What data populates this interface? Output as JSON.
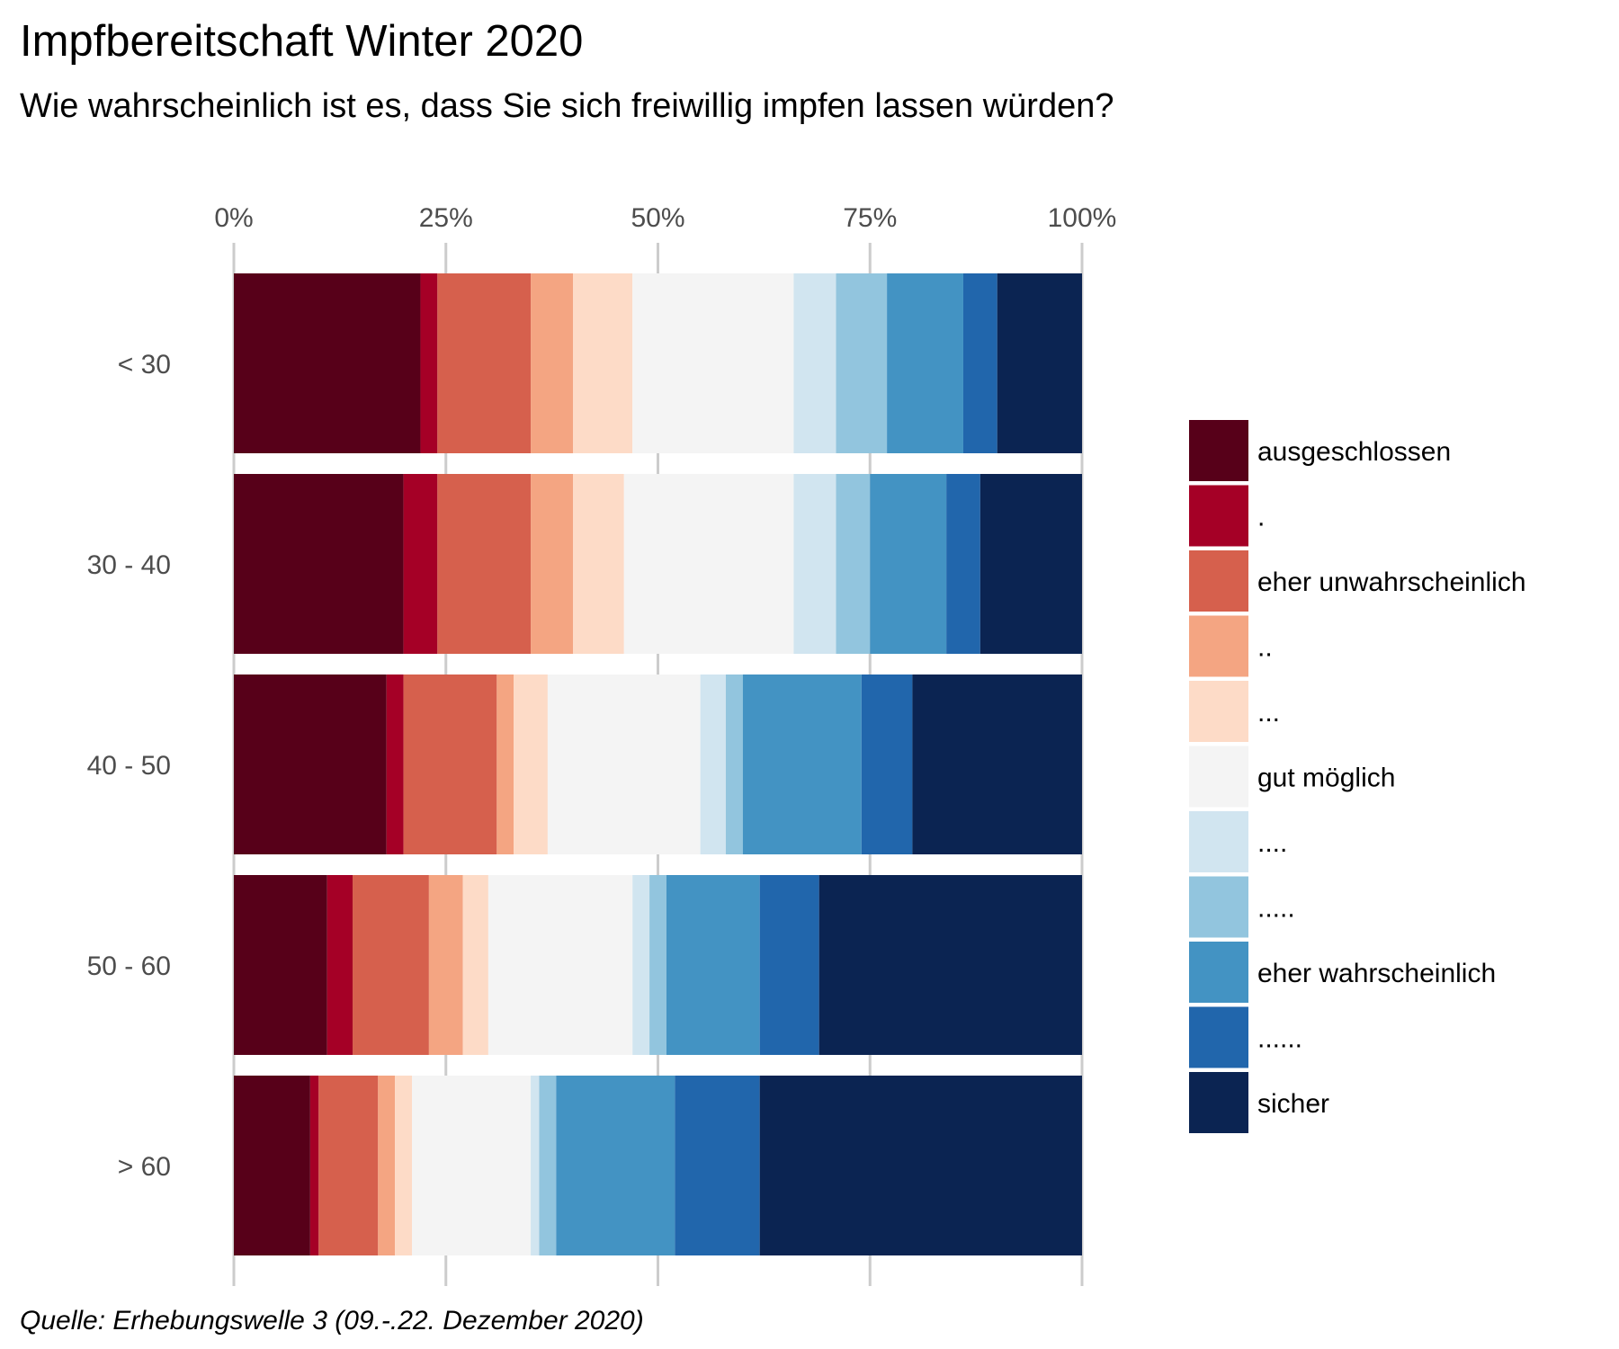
{
  "chart_data": {
    "type": "bar",
    "orientation": "horizontal",
    "stacked": true,
    "normalized": true,
    "title": "Impfbereitschaft Winter 2020",
    "subtitle": "Wie wahrscheinlich ist es, dass Sie sich freiwillig impfen lassen würden?",
    "caption": "Quelle: Erhebungswelle 3 (09.-.22. Dezember 2020)",
    "categories": [
      "< 30",
      "30 - 40",
      "40 - 50",
      "50 - 60",
      "> 60"
    ],
    "x_ticks": [
      0,
      25,
      50,
      75,
      100
    ],
    "x_tick_labels": [
      "0%",
      "25%",
      "50%",
      "75%",
      "100%"
    ],
    "x_range": [
      0,
      100
    ],
    "x_axis_position": "top",
    "grid": true,
    "legend_position": "right",
    "series": [
      {
        "name": "ausgeschlossen",
        "color": "#570019",
        "values": [
          22,
          20,
          18,
          11,
          9
        ]
      },
      {
        "name": ".",
        "color": "#A50026",
        "values": [
          2,
          4,
          2,
          3,
          1
        ]
      },
      {
        "name": "eher unwahrscheinlich",
        "color": "#D6604D",
        "values": [
          11,
          11,
          11,
          9,
          7
        ]
      },
      {
        "name": "..",
        "color": "#F4A582",
        "values": [
          5,
          5,
          2,
          4,
          2
        ]
      },
      {
        "name": "...",
        "color": "#FDDBC7",
        "values": [
          7,
          6,
          4,
          3,
          2
        ]
      },
      {
        "name": "gut möglich",
        "color": "#F4F4F4",
        "values": [
          19,
          20,
          18,
          17,
          14
        ]
      },
      {
        "name": "....",
        "color": "#D1E5F0",
        "values": [
          5,
          5,
          3,
          2,
          1
        ]
      },
      {
        "name": ".....",
        "color": "#92C5DE",
        "values": [
          6,
          4,
          2,
          2,
          2
        ]
      },
      {
        "name": "eher wahrscheinlich",
        "color": "#4393C3",
        "values": [
          9,
          9,
          14,
          11,
          14
        ]
      },
      {
        "name": "......",
        "color": "#2166AC",
        "values": [
          4,
          4,
          6,
          7,
          10
        ]
      },
      {
        "name": "sicher",
        "color": "#0B2452",
        "values": [
          10,
          12,
          20,
          31,
          38
        ]
      }
    ]
  }
}
